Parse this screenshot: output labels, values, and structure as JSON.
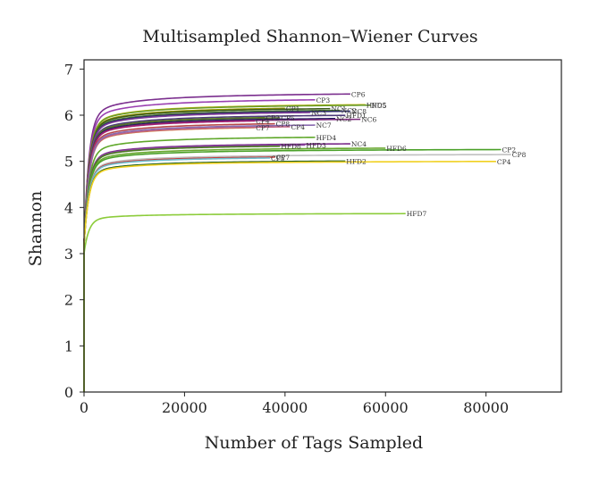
{
  "chart_data": {
    "type": "line",
    "title": "Multisampled Shannon–Wiener Curves",
    "xlabel": "Number of Tags Sampled",
    "ylabel": "Shannon",
    "xlim": [
      0,
      95000
    ],
    "ylim": [
      0,
      7.2
    ],
    "xticks": [
      0,
      20000,
      40000,
      60000,
      80000
    ],
    "xtick_labels": [
      "0",
      "20000",
      "40000",
      "60000",
      "80000"
    ],
    "yticks": [
      0,
      1,
      2,
      3,
      4,
      5,
      6,
      7
    ],
    "ytick_labels": [
      "0",
      "1",
      "2",
      "3",
      "4",
      "5",
      "6",
      "7"
    ],
    "grid": false,
    "series": [
      {
        "name": "CP6",
        "color": "#7b2f8e",
        "start": 3.2,
        "plateau": 6.52,
        "end": 53000
      },
      {
        "name": "CP3",
        "color": "#9a3fb0",
        "start": 3.2,
        "plateau": 6.4,
        "end": 46000
      },
      {
        "name": "HFD5",
        "color": "#c8b400",
        "start": 3.2,
        "plateau": 6.28,
        "end": 56000
      },
      {
        "name": "NC5",
        "color": "#6a9c2a",
        "start": 3.2,
        "plateau": 6.27,
        "end": 57000
      },
      {
        "name": "CP1",
        "color": "#9c9a00",
        "start": 3.2,
        "plateau": 6.22,
        "end": 40000
      },
      {
        "name": "NC1",
        "color": "#3c5a1a",
        "start": 3.2,
        "plateau": 6.2,
        "end": 49000
      },
      {
        "name": "NC2",
        "color": "#4a7a2a",
        "start": 3.2,
        "plateau": 6.16,
        "end": 51000
      },
      {
        "name": "NC8",
        "color": "#2b2b6b",
        "start": 3.2,
        "plateau": 6.14,
        "end": 53000
      },
      {
        "name": "NC3",
        "color": "#7d3c98",
        "start": 3.2,
        "plateau": 6.12,
        "end": 45000
      },
      {
        "name": "HFD1",
        "color": "#4d3a7a",
        "start": 3.2,
        "plateau": 6.05,
        "end": 52000
      },
      {
        "name": "CP2",
        "color": "#5b8a1e",
        "start": 3.2,
        "plateau": 6.02,
        "end": 36000
      },
      {
        "name": "CP5",
        "color": "#556b2f",
        "start": 3.2,
        "plateau": 6.01,
        "end": 39000
      },
      {
        "name": "NC2",
        "color": "#1b1b5e",
        "start": 3.2,
        "plateau": 5.98,
        "end": 50000
      },
      {
        "name": "NC6",
        "color": "#7a2a7a",
        "start": 3.2,
        "plateau": 5.96,
        "end": 55000
      },
      {
        "name": "CP4",
        "color": "#a02070",
        "start": 3.2,
        "plateau": 5.95,
        "end": 34000
      },
      {
        "name": "CP8",
        "color": "#b84a4a",
        "start": 3.2,
        "plateau": 5.88,
        "end": 38000
      },
      {
        "name": "CP7",
        "color": "#d2843a",
        "start": 3.2,
        "plateau": 5.8,
        "end": 34000
      },
      {
        "name": "CP4",
        "color": "#c06080",
        "start": 3.2,
        "plateau": 5.81,
        "end": 41000
      },
      {
        "name": "NC7",
        "color": "#8a6ab0",
        "start": 3.2,
        "plateau": 5.84,
        "end": 46000
      },
      {
        "name": "HFD4",
        "color": "#5fa82a",
        "start": 3.2,
        "plateau": 5.57,
        "end": 46000
      },
      {
        "name": "NC4",
        "color": "#7a2a8a",
        "start": 3.2,
        "plateau": 5.42,
        "end": 53000
      },
      {
        "name": "HFD3",
        "color": "#8a4aa0",
        "start": 3.2,
        "plateau": 5.4,
        "end": 44000
      },
      {
        "name": "HFD8",
        "color": "#4a7a20",
        "start": 3.2,
        "plateau": 5.38,
        "end": 39000
      },
      {
        "name": "HFD6",
        "color": "#6aa830",
        "start": 3.2,
        "plateau": 5.32,
        "end": 60000
      },
      {
        "name": "CP2",
        "color": "#4aa028",
        "start": 3.2,
        "plateau": 5.28,
        "end": 83000
      },
      {
        "name": "CP8",
        "color": "#c0c0c0",
        "start": 3.2,
        "plateau": 5.17,
        "end": 85000
      },
      {
        "name": "CP7",
        "color": "#c04040",
        "start": 3.2,
        "plateau": 5.14,
        "end": 38000
      },
      {
        "name": "CP5",
        "color": "#70c0d0",
        "start": 3.2,
        "plateau": 5.12,
        "end": 37000
      },
      {
        "name": "HFD2",
        "color": "#1e5c1e",
        "start": 3.2,
        "plateau": 5.04,
        "end": 52000
      },
      {
        "name": "CP4",
        "color": "#f0d020",
        "start": 3.2,
        "plateau": 5.02,
        "end": 82000
      },
      {
        "name": "HFD7",
        "color": "#8ccc3a",
        "start": 3.0,
        "plateau": 3.88,
        "end": 64000
      }
    ]
  }
}
